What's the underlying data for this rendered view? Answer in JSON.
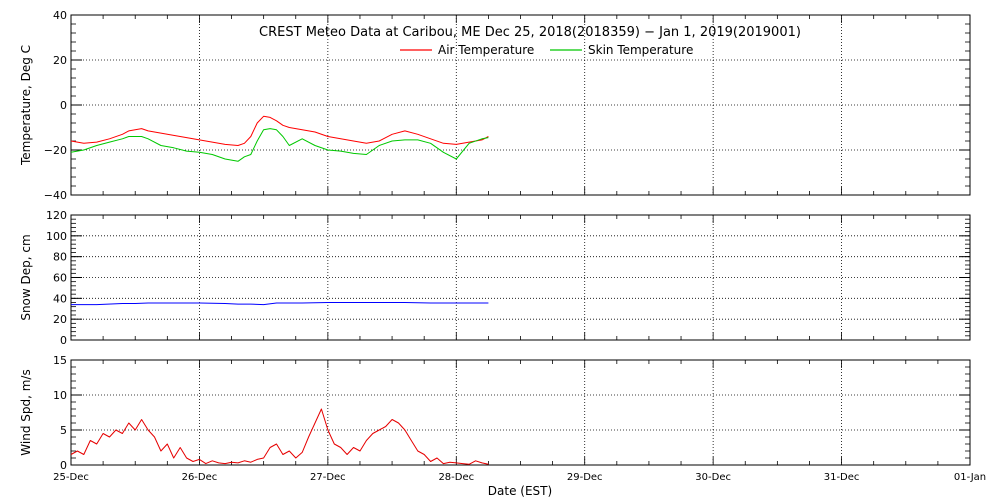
{
  "title": "CREST Meteo Data at Caribou, ME   Dec 25, 2018(2018359) − Jan  1, 2019(2019001)",
  "xlabel": "Date (EST)",
  "x_ticks": [
    "25-Dec",
    "26-Dec",
    "27-Dec",
    "28-Dec",
    "29-Dec",
    "30-Dec",
    "31-Dec",
    "01-Jan"
  ],
  "x_range_days": [
    0,
    7
  ],
  "colors": {
    "axes": "#000000",
    "grid": "#000000",
    "air": "#ff0000",
    "skin": "#00c800",
    "snow": "#0000ff",
    "wind": "#e60000"
  },
  "chart_data": [
    {
      "type": "line",
      "ylabel": "Temperature, Deg C",
      "ylim": [
        -40,
        40
      ],
      "y_ticks": [
        "40",
        "20",
        "0",
        "−20",
        "−40"
      ],
      "y_tick_values": [
        40,
        20,
        0,
        -20,
        -40
      ],
      "grid": true,
      "legend": "top-center",
      "series": [
        {
          "name": "Air Temperature",
          "color": "#ff0000",
          "x": [
            0,
            0.1,
            0.2,
            0.3,
            0.4,
            0.45,
            0.55,
            0.6,
            0.7,
            0.8,
            0.9,
            1.0,
            1.1,
            1.2,
            1.3,
            1.35,
            1.4,
            1.45,
            1.5,
            1.55,
            1.6,
            1.65,
            1.7,
            1.8,
            1.9,
            2.0,
            2.1,
            2.2,
            2.3,
            2.4,
            2.5,
            2.6,
            2.7,
            2.8,
            2.9,
            3.0,
            3.1,
            3.2,
            3.25
          ],
          "y": [
            -16,
            -17,
            -16.5,
            -15,
            -13,
            -11.5,
            -10.5,
            -11.5,
            -12.5,
            -13.5,
            -14.5,
            -15.5,
            -16.5,
            -17.5,
            -18,
            -17,
            -14,
            -8,
            -5,
            -5.5,
            -7,
            -9,
            -10,
            -11,
            -12,
            -14,
            -15,
            -16,
            -17,
            -16,
            -13,
            -11.5,
            -13,
            -15,
            -17,
            -17.5,
            -16.5,
            -15.5,
            -14
          ]
        },
        {
          "name": "Skin Temperature",
          "color": "#00c800",
          "x": [
            0,
            0.1,
            0.2,
            0.3,
            0.4,
            0.45,
            0.55,
            0.6,
            0.7,
            0.8,
            0.9,
            1.0,
            1.1,
            1.2,
            1.3,
            1.35,
            1.4,
            1.45,
            1.5,
            1.55,
            1.6,
            1.65,
            1.7,
            1.8,
            1.9,
            2.0,
            2.1,
            2.2,
            2.3,
            2.4,
            2.5,
            2.6,
            2.7,
            2.8,
            2.9,
            3.0,
            3.1,
            3.2,
            3.25
          ],
          "y": [
            -21,
            -20,
            -18,
            -16.5,
            -15,
            -14,
            -14,
            -15,
            -18,
            -19,
            -20.5,
            -21,
            -22,
            -24,
            -25,
            -23,
            -22,
            -16,
            -11,
            -10.5,
            -11,
            -14,
            -18,
            -15,
            -18,
            -20,
            -20.5,
            -21.5,
            -22,
            -18,
            -16,
            -15.5,
            -15.5,
            -17,
            -21,
            -24,
            -17,
            -15,
            -14.5
          ]
        }
      ]
    },
    {
      "type": "line",
      "ylabel": "Snow Dep, cm",
      "ylim": [
        0,
        120
      ],
      "y_ticks": [
        "120",
        "100",
        "80",
        "60",
        "40",
        "20",
        "0"
      ],
      "y_tick_values": [
        120,
        100,
        80,
        60,
        40,
        20,
        0
      ],
      "grid": true,
      "series": [
        {
          "color": "#0000ff",
          "x": [
            0,
            0.2,
            0.4,
            0.5,
            0.6,
            0.8,
            1.0,
            1.2,
            1.3,
            1.4,
            1.5,
            1.6,
            1.8,
            2.0,
            2.2,
            2.4,
            2.6,
            2.8,
            3.0,
            3.25
          ],
          "y": [
            34,
            34,
            35,
            35,
            35.5,
            35.5,
            35.5,
            35,
            34.5,
            34.5,
            34,
            35.5,
            35.5,
            36,
            36,
            36,
            36,
            35.5,
            35.5,
            35.5
          ]
        }
      ]
    },
    {
      "type": "line",
      "ylabel": "Wind Spd, m/s",
      "ylim": [
        0,
        15
      ],
      "y_ticks": [
        "15",
        "10",
        "5",
        "0"
      ],
      "y_tick_values": [
        15,
        10,
        5,
        0
      ],
      "grid": true,
      "series": [
        {
          "color": "#e60000",
          "x": [
            0,
            0.05,
            0.1,
            0.15,
            0.2,
            0.25,
            0.3,
            0.35,
            0.4,
            0.45,
            0.5,
            0.55,
            0.6,
            0.65,
            0.7,
            0.75,
            0.8,
            0.85,
            0.9,
            0.95,
            1.0,
            1.05,
            1.1,
            1.15,
            1.2,
            1.25,
            1.3,
            1.35,
            1.4,
            1.45,
            1.5,
            1.55,
            1.6,
            1.65,
            1.7,
            1.75,
            1.8,
            1.85,
            1.9,
            1.95,
            2.0,
            2.05,
            2.1,
            2.15,
            2.2,
            2.25,
            2.3,
            2.35,
            2.4,
            2.45,
            2.5,
            2.55,
            2.6,
            2.65,
            2.7,
            2.75,
            2.8,
            2.85,
            2.9,
            2.95,
            3.0,
            3.05,
            3.1,
            3.15,
            3.2,
            3.25
          ],
          "y": [
            1.5,
            2,
            1.5,
            3.5,
            3,
            4.5,
            4,
            5,
            4.5,
            6,
            5,
            6.5,
            5,
            4,
            2,
            3,
            1,
            2.5,
            1,
            0.5,
            0.8,
            0.2,
            0.6,
            0.3,
            0.2,
            0.4,
            0.3,
            0.6,
            0.4,
            0.8,
            1,
            2.5,
            3,
            1.5,
            2,
            1,
            1.8,
            4,
            6,
            8,
            5,
            3,
            2.5,
            1.5,
            2.5,
            2,
            3.5,
            4.5,
            5,
            5.5,
            6.5,
            6,
            5,
            3.5,
            2,
            1.5,
            0.5,
            1,
            0.2,
            0.4,
            0.3,
            0.2,
            0.1,
            0.6,
            0.3,
            0.1
          ]
        }
      ]
    }
  ]
}
